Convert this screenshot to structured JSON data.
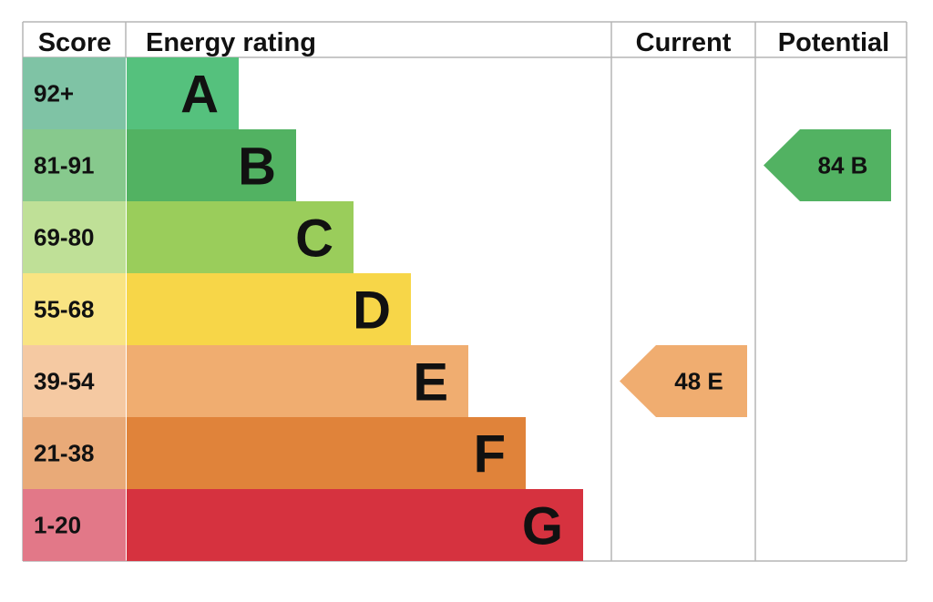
{
  "headers": {
    "score": "Score",
    "energy_rating": "Energy rating",
    "current": "Current",
    "potential": "Potential"
  },
  "chart_data": {
    "type": "bar",
    "bands": [
      {
        "score": "92+",
        "letter": "A",
        "bar_color": "#55c17d",
        "score_color": "#7fc3a5"
      },
      {
        "score": "81-91",
        "letter": "B",
        "bar_color": "#52b262",
        "score_color": "#87c98d"
      },
      {
        "score": "69-80",
        "letter": "C",
        "bar_color": "#9acd5b",
        "score_color": "#bfe097"
      },
      {
        "score": "55-68",
        "letter": "D",
        "bar_color": "#f7d648",
        "score_color": "#f9e482"
      },
      {
        "score": "39-54",
        "letter": "E",
        "bar_color": "#f0ad70",
        "score_color": "#f5c9a2"
      },
      {
        "score": "21-38",
        "letter": "F",
        "bar_color": "#e0833a",
        "score_color": "#e9aa78"
      },
      {
        "score": "1-20",
        "letter": "G",
        "bar_color": "#d6323f",
        "score_color": "#e27888"
      }
    ],
    "current": {
      "value": 48,
      "letter": "E",
      "label": "48 E",
      "color": "#f0ad70"
    },
    "potential": {
      "value": 84,
      "letter": "B",
      "label": "84 B",
      "color": "#52b262"
    }
  }
}
